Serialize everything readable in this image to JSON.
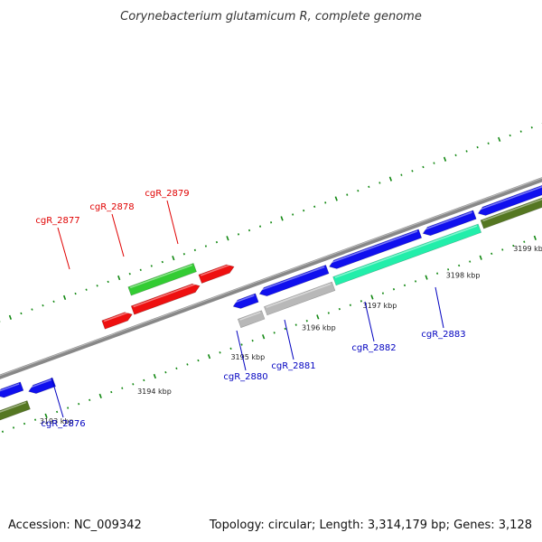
{
  "title": "Corynebacterium glutamicum R, complete genome",
  "footer": {
    "accession": "Accession: NC_009342",
    "summary": "Topology: circular; Length: 3,314,179 bp; Genes: 3,128"
  },
  "colors": {
    "forward_label": "#e00000",
    "reverse_label": "#0000c0",
    "tick": "#118811"
  },
  "ticks": [
    {
      "label": "3193 kbp",
      "kbp": 3193
    },
    {
      "label": "3194 kbp",
      "kbp": 3194
    },
    {
      "label": "3195 kbp",
      "kbp": 3195
    },
    {
      "label": "3196 kbp",
      "kbp": 3196
    },
    {
      "label": "3197 kbp",
      "kbp": 3197
    },
    {
      "label": "3198 kbp",
      "kbp": 3198
    },
    {
      "label": "3199 kbp",
      "kbp": 3199
    }
  ],
  "genes": [
    {
      "label": "cgR_2876",
      "strand": "reverse",
      "color": "#1010ee"
    },
    {
      "label": "cgR_2877",
      "strand": "forward",
      "color": "#ee1010"
    },
    {
      "label": "cgR_2878",
      "strand": "forward",
      "color": "#ee1010"
    },
    {
      "label": "cgR_2879",
      "strand": "forward",
      "color": "#ee1010"
    },
    {
      "label": "cgR_2880",
      "strand": "reverse",
      "color": "#1010ee"
    },
    {
      "label": "cgR_2881",
      "strand": "reverse",
      "color": "#1010ee"
    },
    {
      "label": "cgR_2882",
      "strand": "reverse",
      "color": "#1010ee"
    },
    {
      "label": "cgR_2883",
      "strand": "reverse",
      "color": "#1010ee"
    }
  ]
}
